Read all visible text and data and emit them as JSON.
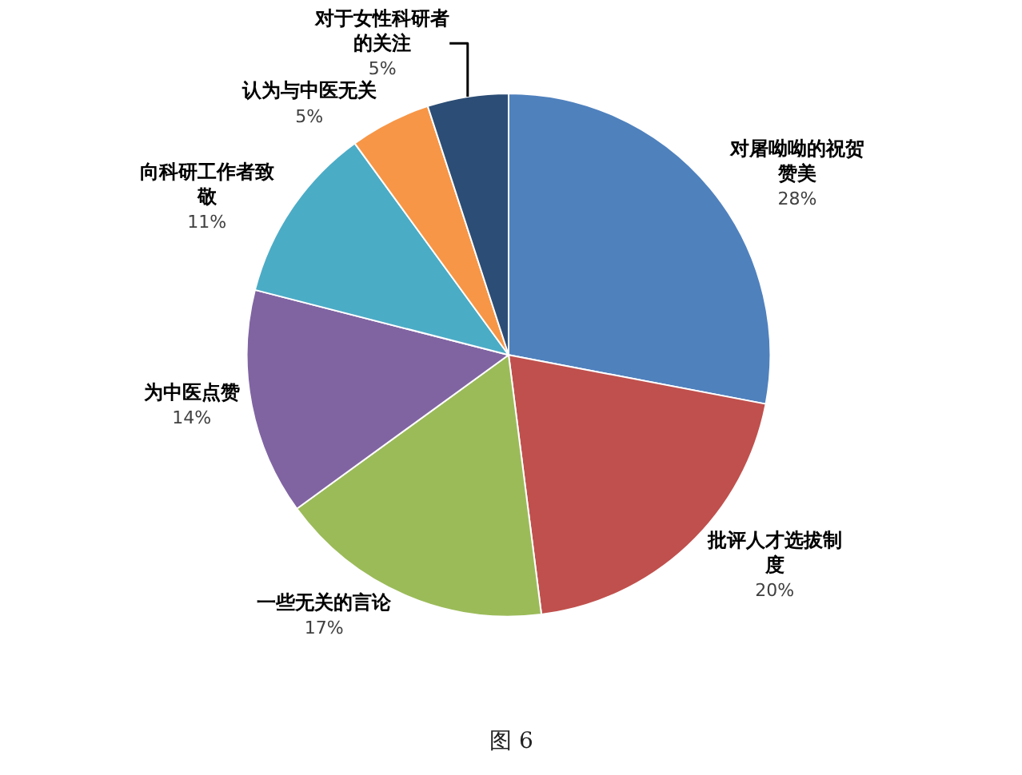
{
  "chart_data": {
    "type": "pie",
    "categories": [
      "对屠呦呦的祝贺赞美",
      "批评人才选拔制度",
      "一些无关的言论",
      "为中医点赞",
      "向科研工作者致敬",
      "认为与中医无关",
      "对于女性科研者的关注"
    ],
    "values": [
      28,
      20,
      17,
      14,
      11,
      5,
      5
    ],
    "value_labels": [
      "28%",
      "20%",
      "17%",
      "14%",
      "11%",
      "5%",
      "5%"
    ],
    "colors": [
      "#4f81bd",
      "#c0504d",
      "#9bbb59",
      "#8064a2",
      "#4bacc6",
      "#f79646",
      "#2c4d75"
    ],
    "annotations": [
      "图 6"
    ]
  }
}
